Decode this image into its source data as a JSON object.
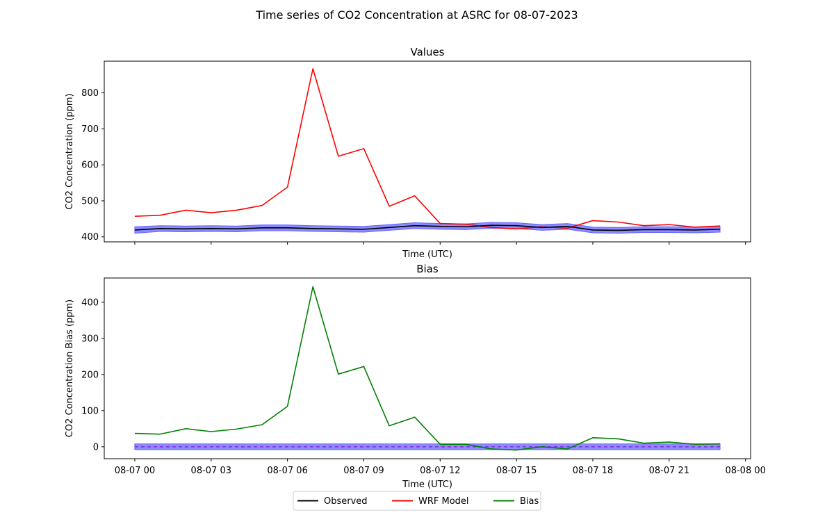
{
  "figure": {
    "suptitle": "Time series of CO2 Concentration at ASRC for 08-07-2023"
  },
  "colors": {
    "observed": "#000000",
    "model": "#ff0000",
    "bias": "#008000",
    "band": "#6464ff",
    "zero_line": "#8a2be2"
  },
  "chart_data": [
    {
      "type": "line",
      "title": "Values",
      "xlabel": "Time (UTC)",
      "ylabel": "CO2 Concentration (ppm)",
      "xlim": [
        "08-07 00 -1.2h",
        "08-08 00 +0.2h"
      ],
      "x_hours_range": [
        -1.2,
        24.2
      ],
      "ylim": [
        386,
        888
      ],
      "yticks": [
        400,
        500,
        600,
        700,
        800
      ],
      "xticks_hours": [
        0,
        3,
        6,
        9,
        12,
        15,
        18,
        21,
        24
      ],
      "x_tick_labels_shown": false,
      "grid": false,
      "x": [
        0,
        1,
        2,
        3,
        4,
        5,
        6,
        7,
        8,
        9,
        10,
        11,
        12,
        13,
        14,
        15,
        16,
        17,
        18,
        19,
        20,
        21,
        22,
        23
      ],
      "series": [
        {
          "name": "Observed",
          "color_key": "observed",
          "values": [
            419,
            423,
            422,
            423,
            422,
            425,
            425,
            423,
            422,
            421,
            426,
            431,
            429,
            428,
            432,
            431,
            426,
            429,
            419,
            418,
            420,
            420,
            419,
            421
          ],
          "band_lower": [
            410,
            415,
            414,
            415,
            414,
            417,
            417,
            415,
            414,
            413,
            418,
            423,
            421,
            420,
            424,
            423,
            418,
            421,
            411,
            410,
            412,
            412,
            411,
            413
          ],
          "band_upper": [
            428,
            431,
            430,
            431,
            430,
            433,
            433,
            431,
            430,
            429,
            434,
            439,
            437,
            436,
            440,
            439,
            434,
            437,
            427,
            426,
            428,
            428,
            427,
            429
          ]
        },
        {
          "name": "WRF Model",
          "color_key": "model",
          "values": [
            457,
            460,
            474,
            467,
            474,
            487,
            538,
            867,
            624,
            645,
            485,
            514,
            437,
            435,
            426,
            422,
            428,
            424,
            445,
            441,
            431,
            434,
            427,
            430
          ]
        }
      ]
    },
    {
      "type": "line",
      "title": "Bias",
      "xlabel": "Time (UTC)",
      "ylabel": "CO2 Concentration Bias (ppm)",
      "x_hours_range": [
        -1.2,
        24.2
      ],
      "ylim": [
        -33,
        467
      ],
      "yticks": [
        0,
        100,
        200,
        300,
        400
      ],
      "xticks_hours": [
        0,
        3,
        6,
        9,
        12,
        15,
        18,
        21,
        24
      ],
      "xtick_labels": [
        "08-07 00",
        "08-07 03",
        "08-07 06",
        "08-07 09",
        "08-07 12",
        "08-07 15",
        "08-07 18",
        "08-07 21",
        "08-08 00"
      ],
      "grid": false,
      "x": [
        0,
        1,
        2,
        3,
        4,
        5,
        6,
        7,
        8,
        9,
        10,
        11,
        12,
        13,
        14,
        15,
        16,
        17,
        18,
        19,
        20,
        21,
        22,
        23
      ],
      "series": [
        {
          "name": "Bias",
          "color_key": "bias",
          "values": [
            37,
            35,
            50,
            42,
            49,
            61,
            112,
            443,
            201,
            222,
            58,
            82,
            7,
            7,
            -6,
            -9,
            0,
            -6,
            25,
            22,
            10,
            13,
            7,
            8
          ]
        }
      ],
      "band": {
        "lower": -8,
        "upper": 8
      },
      "zero_line": 0
    }
  ],
  "legend": {
    "placement": "bottom-center",
    "entries": [
      {
        "label": "Observed",
        "color_key": "observed"
      },
      {
        "label": "WRF Model",
        "color_key": "model"
      },
      {
        "label": "Bias",
        "color_key": "bias"
      }
    ]
  }
}
